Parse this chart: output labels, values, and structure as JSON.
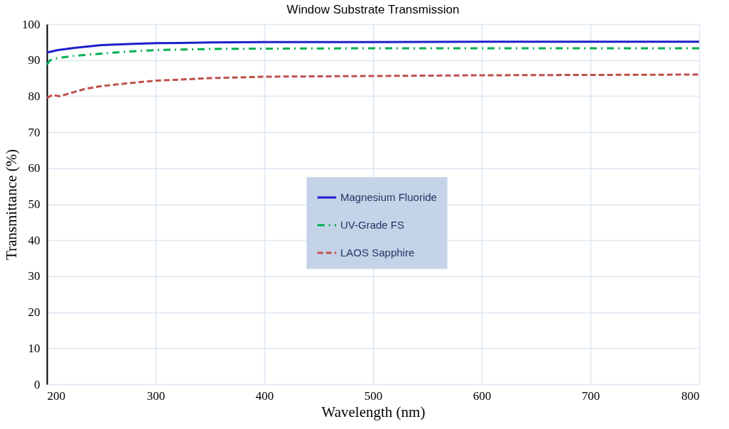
{
  "chart_data": {
    "type": "line",
    "title": "Window Substrate Transmission",
    "xlabel": "Wavelength (nm)",
    "ylabel": "Transmittance (%)",
    "xlim": [
      200,
      800
    ],
    "xticks": [
      200,
      300,
      400,
      500,
      600,
      700,
      800
    ],
    "ylim": [
      0,
      100
    ],
    "yticks": [
      0,
      10,
      20,
      30,
      40,
      50,
      60,
      70,
      80,
      90,
      100
    ],
    "grid": true,
    "legend": "center",
    "marker": "none",
    "series": [
      {
        "name": "Magnesium Fluoride",
        "color": "#1f1fcc",
        "line_style": "solid",
        "x": [
          200,
          210,
          225,
          250,
          275,
          300,
          350,
          400,
          500,
          600,
          700,
          800
        ],
        "values": [
          92.1,
          92.8,
          93.4,
          94.2,
          94.5,
          94.7,
          94.9,
          95.0,
          95.0,
          95.1,
          95.1,
          95.1
        ]
      },
      {
        "name": "UV-Grade FS",
        "color": "#00b050",
        "line_style": "dashdot",
        "x": [
          200,
          203,
          210,
          225,
          250,
          275,
          300,
          350,
          400,
          500,
          600,
          700,
          800
        ],
        "values": [
          88.8,
          90.0,
          90.6,
          91.2,
          91.8,
          92.4,
          92.8,
          93.1,
          93.2,
          93.3,
          93.3,
          93.3,
          93.3
        ]
      },
      {
        "name": "LAOS Sapphire",
        "color": "#c0504d",
        "line_style": "dashed",
        "x": [
          200,
          205,
          212,
          220,
          235,
          250,
          275,
          300,
          350,
          400,
          500,
          600,
          700,
          800
        ],
        "values": [
          79.5,
          80.3,
          80.0,
          80.7,
          82.0,
          82.8,
          83.6,
          84.3,
          85.0,
          85.4,
          85.6,
          85.8,
          85.9,
          86.0
        ]
      }
    ]
  }
}
